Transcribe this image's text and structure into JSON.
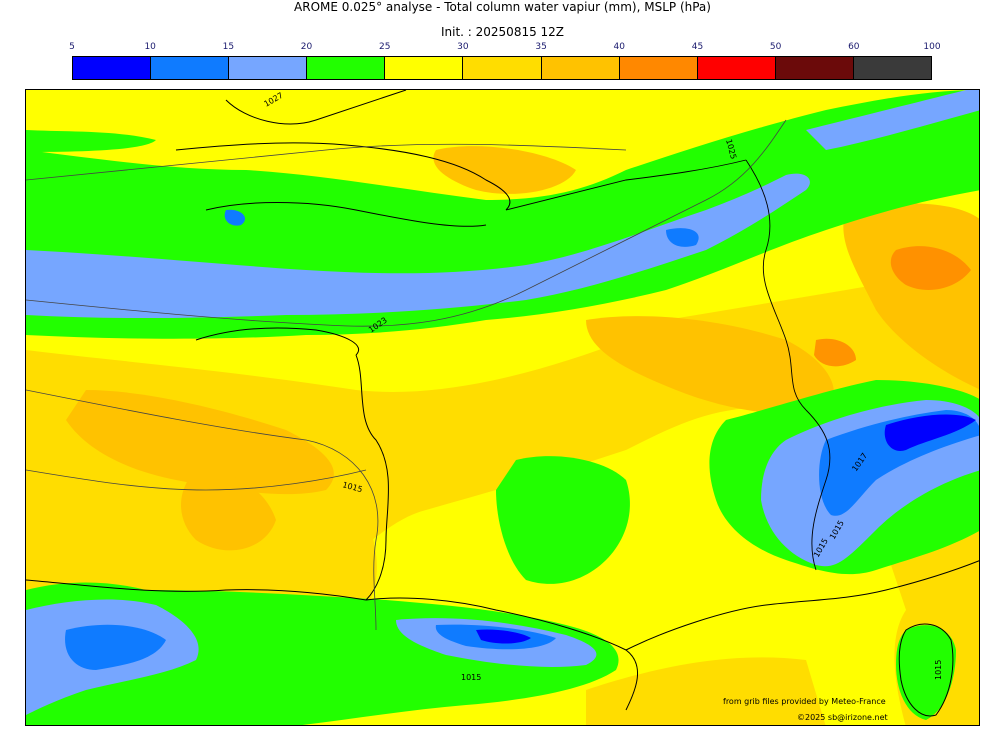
{
  "title": "AROME 0.025° analyse - Total column water vapiur (mm), MSLP (hPa)",
  "subtitle": "Init. : 20250815 12Z",
  "colorbar": {
    "ticks": [
      "5",
      "10",
      "15",
      "20",
      "25",
      "30",
      "35",
      "40",
      "45",
      "50",
      "60",
      "100"
    ],
    "colors": [
      "#0000ff",
      "#0f7bff",
      "#76a6ff",
      "#22ff00",
      "#ffff00",
      "#ffdd00",
      "#ffc200",
      "#ff8800",
      "#ff0000",
      "#6b0a0a",
      "#3a3a3a"
    ]
  },
  "isobar_labels": [
    "1027",
    "1025",
    "1023",
    "1015",
    "1017",
    "1015",
    "1015",
    "1015",
    "1015"
  ],
  "credits": {
    "line1": "from grib files provided by Meteo-France",
    "line2": "©2025 sb@irizone.net"
  }
}
